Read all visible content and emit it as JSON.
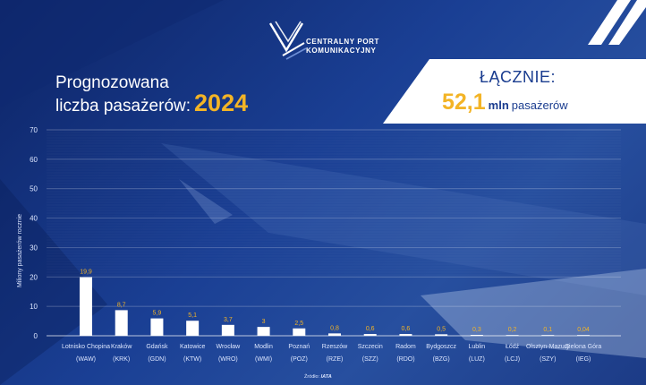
{
  "logo": {
    "line1": "CENTRALNY PORT",
    "line2": "KOMUNIKACYJNY",
    "icon": "cpk-wings-logo-icon"
  },
  "title": {
    "line1": "Prognozowana",
    "line2": "liczba pasażerów:",
    "year": "2024"
  },
  "total": {
    "label": "ŁĄCZNIE:",
    "value": "52,1",
    "unit": "mln",
    "rest": "pasażerów"
  },
  "source": {
    "prefix": "Źródło:",
    "name": "IATA"
  },
  "colors": {
    "accent": "#f3b426",
    "bar": "#ffffff",
    "background": "#1a3f94",
    "total_text": "#1a3c8f"
  },
  "chart_data": {
    "type": "bar",
    "ylabel": "Miliony pasażerów rocznie",
    "ylim": [
      0,
      70
    ],
    "yticks": [
      0,
      10,
      20,
      30,
      40,
      50,
      60,
      70
    ],
    "categories": [
      {
        "name": "Lotnisko Chopina",
        "code": "(WAW)"
      },
      {
        "name": "Kraków",
        "code": "(KRK)"
      },
      {
        "name": "Gdańsk",
        "code": "(GDN)"
      },
      {
        "name": "Katowice",
        "code": "(KTW)"
      },
      {
        "name": "Wrocław",
        "code": "(WRO)"
      },
      {
        "name": "Modlin",
        "code": "(WMI)"
      },
      {
        "name": "Poznań",
        "code": "(POZ)"
      },
      {
        "name": "Rzeszów",
        "code": "(RZE)"
      },
      {
        "name": "Szczecin",
        "code": "(SZZ)"
      },
      {
        "name": "Radom",
        "code": "(RDO)"
      },
      {
        "name": "Bydgoszcz",
        "code": "(BZG)"
      },
      {
        "name": "Lublin",
        "code": "(LUZ)"
      },
      {
        "name": "Łódź",
        "code": "(LCJ)"
      },
      {
        "name": "Olsztyn-Mazury",
        "code": "(SZY)"
      },
      {
        "name": "Zielona Góra",
        "code": "(IEG)"
      }
    ],
    "values": [
      19.9,
      8.7,
      5.9,
      5.1,
      3.7,
      3,
      2.5,
      0.8,
      0.6,
      0.6,
      0.5,
      0.3,
      0.2,
      0.1,
      0.04
    ],
    "value_labels": [
      "19,9",
      "8,7",
      "5,9",
      "5,1",
      "3,7",
      "3",
      "2,5",
      "0,8",
      "0,6",
      "0,6",
      "0,5",
      "0,3",
      "0,2",
      "0,1",
      "0,04"
    ],
    "grid": true
  }
}
